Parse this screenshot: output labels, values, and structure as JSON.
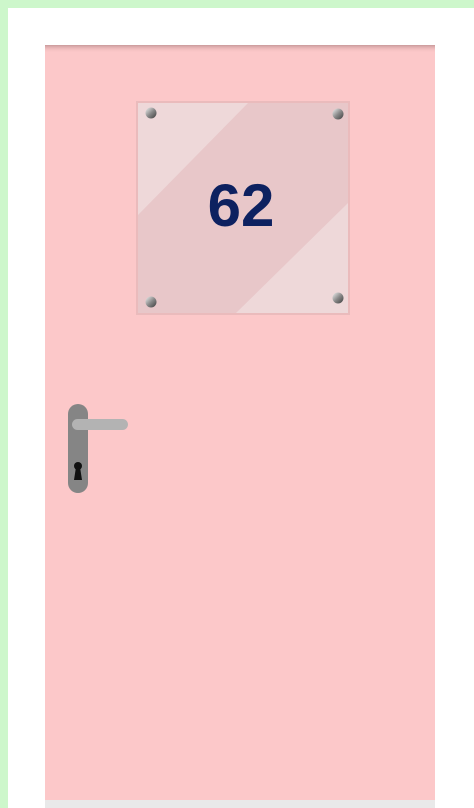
{
  "door": {
    "number": "62"
  }
}
